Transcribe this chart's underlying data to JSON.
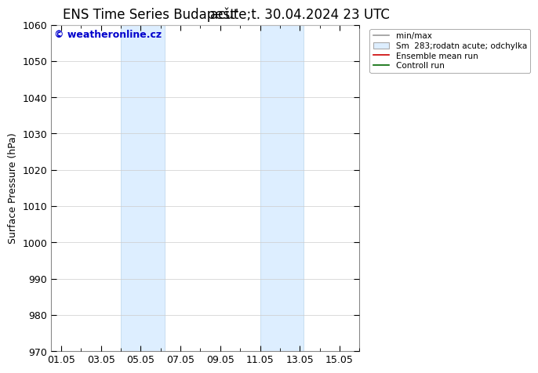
{
  "title_left": "ENS Time Series Budapešt'",
  "title_right": "acute;t. 30.04.2024 23 UTC",
  "ylabel": "Surface Pressure (hPa)",
  "ylim": [
    970,
    1060
  ],
  "yticks": [
    970,
    980,
    990,
    1000,
    1010,
    1020,
    1030,
    1040,
    1050,
    1060
  ],
  "xtick_labels": [
    "01.05",
    "03.05",
    "05.05",
    "07.05",
    "09.05",
    "11.05",
    "13.05",
    "15.05"
  ],
  "xtick_positions": [
    0,
    2,
    4,
    6,
    8,
    10,
    12,
    14
  ],
  "xlim": [
    -0.5,
    15.0
  ],
  "blue_bands": [
    {
      "x_start": 3.0,
      "x_end": 5.2
    },
    {
      "x_start": 10.0,
      "x_end": 12.2
    }
  ],
  "band_color": "#ddeeff",
  "band_edge_color": "#b8d4ea",
  "watermark": "© weatheronline.cz",
  "watermark_color": "#0000cc",
  "background_color": "#ffffff",
  "plot_bg_color": "#ffffff",
  "grid_color": "#cccccc",
  "legend_items": [
    {
      "label": "min/max",
      "color": "#999999",
      "style": "line"
    },
    {
      "label": "Sm  283;rodatn acute; odchylka",
      "color": "#cccccc",
      "style": "band"
    },
    {
      "label": "Ensemble mean run",
      "color": "#cc0000",
      "style": "line"
    },
    {
      "label": "Controll run",
      "color": "#006600",
      "style": "line"
    }
  ],
  "title_fontsize": 12,
  "tick_fontsize": 9,
  "ylabel_fontsize": 9,
  "watermark_fontsize": 9
}
